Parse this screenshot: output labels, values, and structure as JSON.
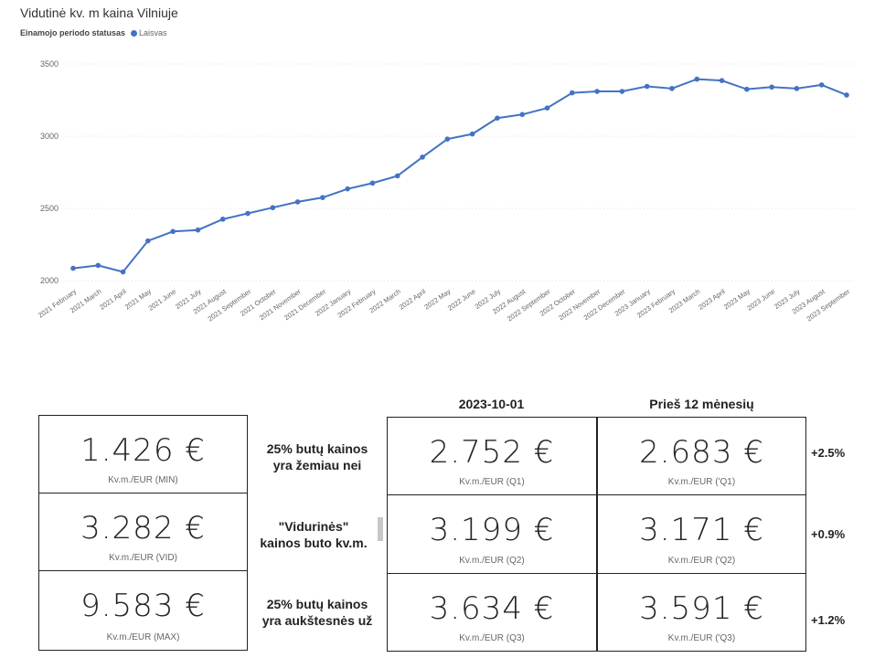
{
  "chart_data": {
    "type": "line",
    "title": "Vidutinė kv. m kaina Vilniuje",
    "legend_title": "Einamojo periodo statusas",
    "series": [
      {
        "name": "Laisvas",
        "color": "#4472c4",
        "values": [
          2085,
          2105,
          2060,
          2275,
          2340,
          2350,
          2425,
          2465,
          2505,
          2545,
          2575,
          2635,
          2675,
          2725,
          2855,
          2980,
          3015,
          3125,
          3150,
          3195,
          3300,
          3310,
          3310,
          3345,
          3330,
          3395,
          3385,
          3325,
          3340,
          3330,
          3355,
          3285
        ]
      }
    ],
    "categories": [
      "2021 February",
      "2021 March",
      "2021 April",
      "2021 May",
      "2021 June",
      "2021 July",
      "2021 August",
      "2021 September",
      "2021 October",
      "2021 November",
      "2021 December",
      "2022 January",
      "2022 February",
      "2022 March",
      "2022 April",
      "2022 May",
      "2022 June",
      "2022 July",
      "2022 August",
      "2022 September",
      "2022 October",
      "2022 November",
      "2022 December",
      "2023 January",
      "2023 February",
      "2023 March",
      "2023 April",
      "2023 May",
      "2023 June",
      "2023 July",
      "2023 August",
      "2023 September"
    ],
    "yticks": [
      2000,
      2500,
      3000,
      3500
    ],
    "ylim": [
      2000,
      3500
    ],
    "grid": true,
    "legend_position": "top-left"
  },
  "left_cards": [
    {
      "value": "1.426 €",
      "label": "Kv.m./EUR (MIN)"
    },
    {
      "value": "3.282 €",
      "label": "Kv.m./EUR (VID)"
    },
    {
      "value": "9.583 €",
      "label": "Kv.m./EUR (MAX)"
    }
  ],
  "middle_texts": [
    {
      "line1": "25% butų kainos",
      "line2": "yra žemiau nei"
    },
    {
      "line1": "\"Vidurinės\"",
      "line2": "kainos buto kv.m."
    },
    {
      "line1": "25% butų kainos",
      "line2": "yra aukštesnės už"
    }
  ],
  "columns": {
    "current": "2023-10-01",
    "previous": "Prieš 12 mėnesių"
  },
  "current_cards": [
    {
      "value": "2.752 €",
      "label": "Kv.m./EUR (Q1)"
    },
    {
      "value": "3.199 €",
      "label": "Kv.m./EUR (Q2)"
    },
    {
      "value": "3.634 €",
      "label": "Kv.m./EUR (Q3)"
    }
  ],
  "previous_cards": [
    {
      "value": "2.683 €",
      "label": "Kv.m./EUR ('Q1)"
    },
    {
      "value": "3.171 €",
      "label": "Kv.m./EUR ('Q2)"
    },
    {
      "value": "3.591 €",
      "label": "Kv.m./EUR ('Q3)"
    }
  ],
  "changes": [
    "+2.5%",
    "+0.9%",
    "+1.2%"
  ]
}
